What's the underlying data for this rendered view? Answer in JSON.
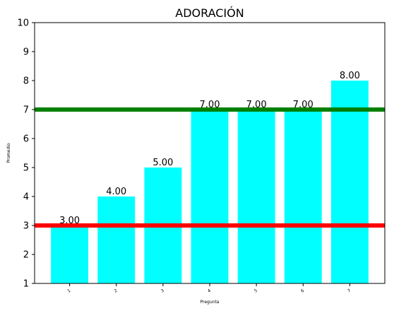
{
  "chart_data": {
    "type": "bar",
    "title": "ADORACIÓN",
    "xlabel": "Pregunta",
    "ylabel": "Promedio",
    "categories": [
      "1",
      "2",
      "3",
      "4",
      "5",
      "6",
      "7"
    ],
    "values": [
      3,
      4,
      5,
      7,
      7,
      7,
      8
    ],
    "data_labels": [
      "3.00",
      "4.00",
      "5.00",
      "7.00",
      "7.00",
      "7.00",
      "8.00"
    ],
    "ylim": [
      1,
      10
    ],
    "yticks": [
      1,
      2,
      3,
      4,
      5,
      6,
      7,
      8,
      9,
      10
    ],
    "grid": false,
    "bar_color": "#00ffff",
    "reference_lines": [
      {
        "value": 7,
        "color": "#008000"
      },
      {
        "value": 3,
        "color": "#ff0000"
      }
    ]
  }
}
